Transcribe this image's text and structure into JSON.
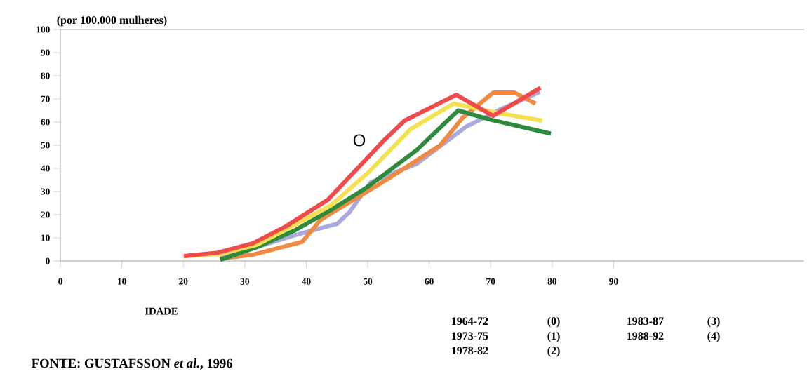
{
  "chart_data": {
    "type": "line",
    "ylabel": "(por 100.000 mulheres)",
    "xlabel": "IDADE",
    "xlim": [
      0,
      121
    ],
    "xticks": [
      0,
      10,
      20,
      30,
      40,
      50,
      60,
      70,
      80,
      90
    ],
    "ylim": [
      0,
      100
    ],
    "yticks": [
      0,
      10,
      20,
      30,
      40,
      50,
      60,
      70,
      80,
      90,
      100
    ],
    "grid": false,
    "marker": "none",
    "line_style": "solid",
    "series": [
      {
        "color": "#a9a9df",
        "x": [
          26,
          32,
          38,
          45,
          47,
          50.5,
          58,
          66,
          72,
          78
        ],
        "values": [
          1,
          6,
          11,
          16,
          21,
          34,
          42,
          58,
          66,
          73
        ]
      },
      {
        "color": "#f08a40",
        "x": [
          26,
          31.3,
          39.3,
          42.4,
          53,
          61.8,
          65.5,
          70.4,
          73.9,
          77.3
        ],
        "values": [
          1,
          2.7,
          8.2,
          17.9,
          35,
          50,
          62,
          72.7,
          72.7,
          68
        ]
      },
      {
        "color": "#2e8b3e",
        "x": [
          26,
          32,
          38,
          44,
          50,
          58,
          64.7,
          70,
          79.8
        ],
        "values": [
          0.5,
          6,
          13,
          22,
          32,
          48,
          65,
          61,
          55
        ]
      },
      {
        "color": "#f5e050",
        "x": [
          20,
          26,
          32,
          37,
          44,
          50,
          57,
          64,
          71,
          78.4
        ],
        "values": [
          2,
          3,
          7,
          14,
          24,
          38,
          57,
          68,
          64,
          60.6
        ]
      },
      {
        "color": "#f04a4a",
        "x": [
          20.1,
          25.6,
          31.3,
          36.6,
          43.5,
          52.6,
          56,
          64.4,
          70.4,
          78.1
        ],
        "values": [
          2.1,
          3.6,
          7.6,
          14.8,
          26.4,
          52,
          60.6,
          71.8,
          62.7,
          74.8
        ]
      }
    ],
    "annotations": [
      "O",
      "1964-72",
      "(0)",
      "1973-75",
      "(1)",
      "1978-82",
      "(2)",
      "1983-87",
      "(3)",
      "1988-92",
      "(4)",
      "FONTE: GUSTAFSSON *et al.*, 1996"
    ]
  }
}
